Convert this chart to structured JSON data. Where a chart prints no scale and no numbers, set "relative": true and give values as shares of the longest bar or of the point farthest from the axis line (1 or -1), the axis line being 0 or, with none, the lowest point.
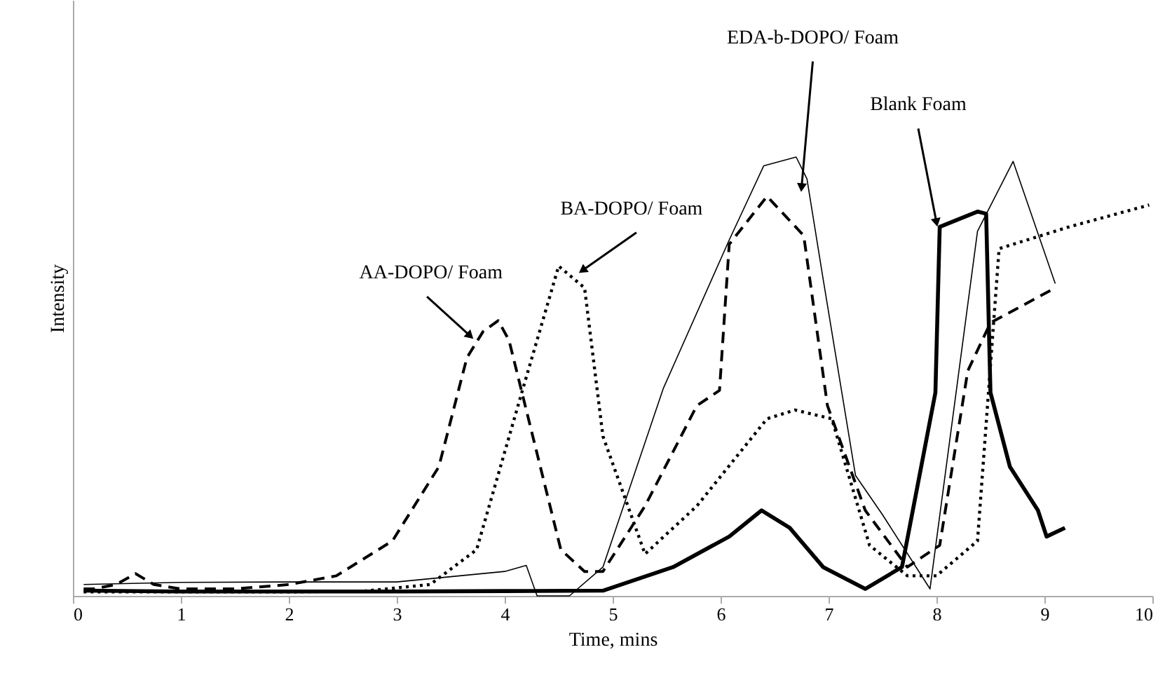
{
  "chart_data": {
    "type": "line",
    "relative": true,
    "xlabel": "Time, mins",
    "ylabel": "Intensity",
    "xlim": [
      0,
      10
    ],
    "xticks": [
      0,
      1,
      2,
      3,
      4,
      5,
      6,
      7,
      8,
      9,
      10
    ],
    "grid": false,
    "marker": "none",
    "series": [
      {
        "color": "#000000",
        "line_style": "dashed",
        "x": [
          0.1,
          0.19,
          0.4,
          0.58,
          0.75,
          1.0,
          1.5,
          2.0,
          2.44,
          2.96,
          3.39,
          3.65,
          3.8,
          3.94,
          4.04,
          4.26,
          4.52,
          4.74,
          4.91,
          5.3,
          5.78,
          5.99,
          6.08,
          6.43,
          6.77,
          6.99,
          7.34,
          7.73,
          8.03,
          8.29,
          8.5,
          9.1
        ],
        "values": [
          0.01,
          0.01,
          0.02,
          0.045,
          0.02,
          0.01,
          0.01,
          0.02,
          0.04,
          0.12,
          0.29,
          0.54,
          0.6,
          0.625,
          0.58,
          0.36,
          0.1,
          0.05,
          0.05,
          0.2,
          0.43,
          0.465,
          0.8,
          0.91,
          0.82,
          0.43,
          0.19,
          0.06,
          0.11,
          0.51,
          0.62,
          0.7
        ]
      },
      {
        "color": "#000000",
        "line_style": "dotted",
        "x": [
          0.1,
          1.0,
          2.0,
          2.7,
          3.31,
          3.74,
          4.17,
          4.5,
          4.74,
          4.91,
          5.3,
          5.78,
          6.43,
          6.69,
          7.03,
          7.38,
          7.73,
          8.0,
          8.38,
          8.58,
          9.23,
          9.97
        ],
        "values": [
          0.003,
          0.003,
          0.003,
          0.005,
          0.02,
          0.1,
          0.47,
          0.75,
          0.7,
          0.36,
          0.09,
          0.2,
          0.4,
          0.42,
          0.4,
          0.11,
          0.04,
          0.04,
          0.12,
          0.79,
          0.84,
          0.89
        ]
      },
      {
        "color": "#000000",
        "line_style": "solid",
        "x": [
          0.1,
          1.0,
          2.0,
          3.0,
          4.0,
          4.2,
          4.3,
          4.6,
          4.91,
          5.47,
          6.08,
          6.4,
          6.7,
          6.8,
          6.95,
          7.25,
          7.5,
          7.94,
          8.38,
          8.71,
          9.1
        ],
        "values": [
          0.02,
          0.025,
          0.026,
          0.026,
          0.05,
          0.064,
          -0.006,
          -0.006,
          0.06,
          0.47,
          0.81,
          0.98,
          1.0,
          0.95,
          0.72,
          0.27,
          0.18,
          0.01,
          0.83,
          0.99,
          0.71
        ]
      },
      {
        "color": "#000000",
        "line_style": "solid",
        "x": [
          0.1,
          1.0,
          2.0,
          3.0,
          4.0,
          4.91,
          5.56,
          6.08,
          6.38,
          6.64,
          6.95,
          7.34,
          7.68,
          7.99,
          8.03,
          8.38,
          8.46,
          8.5,
          8.68,
          8.94,
          9.02,
          9.19
        ],
        "values": [
          0.006,
          0.004,
          0.004,
          0.004,
          0.005,
          0.006,
          0.06,
          0.13,
          0.19,
          0.15,
          0.06,
          0.01,
          0.06,
          0.46,
          0.84,
          0.875,
          0.87,
          0.46,
          0.29,
          0.19,
          0.13,
          0.15
        ]
      }
    ],
    "annotations": [
      {
        "text": "AA-DOPO/ Foam",
        "x": 3.68,
        "y": 0.59
      },
      {
        "text": "BA-DOPO/ Foam",
        "x": 4.72,
        "y": 0.74
      },
      {
        "text": "EDA-b-DOPO/ Foam",
        "x": 6.75,
        "y": 0.93
      },
      {
        "text": "Blank Foam",
        "x": 8.0,
        "y": 0.85
      }
    ]
  }
}
